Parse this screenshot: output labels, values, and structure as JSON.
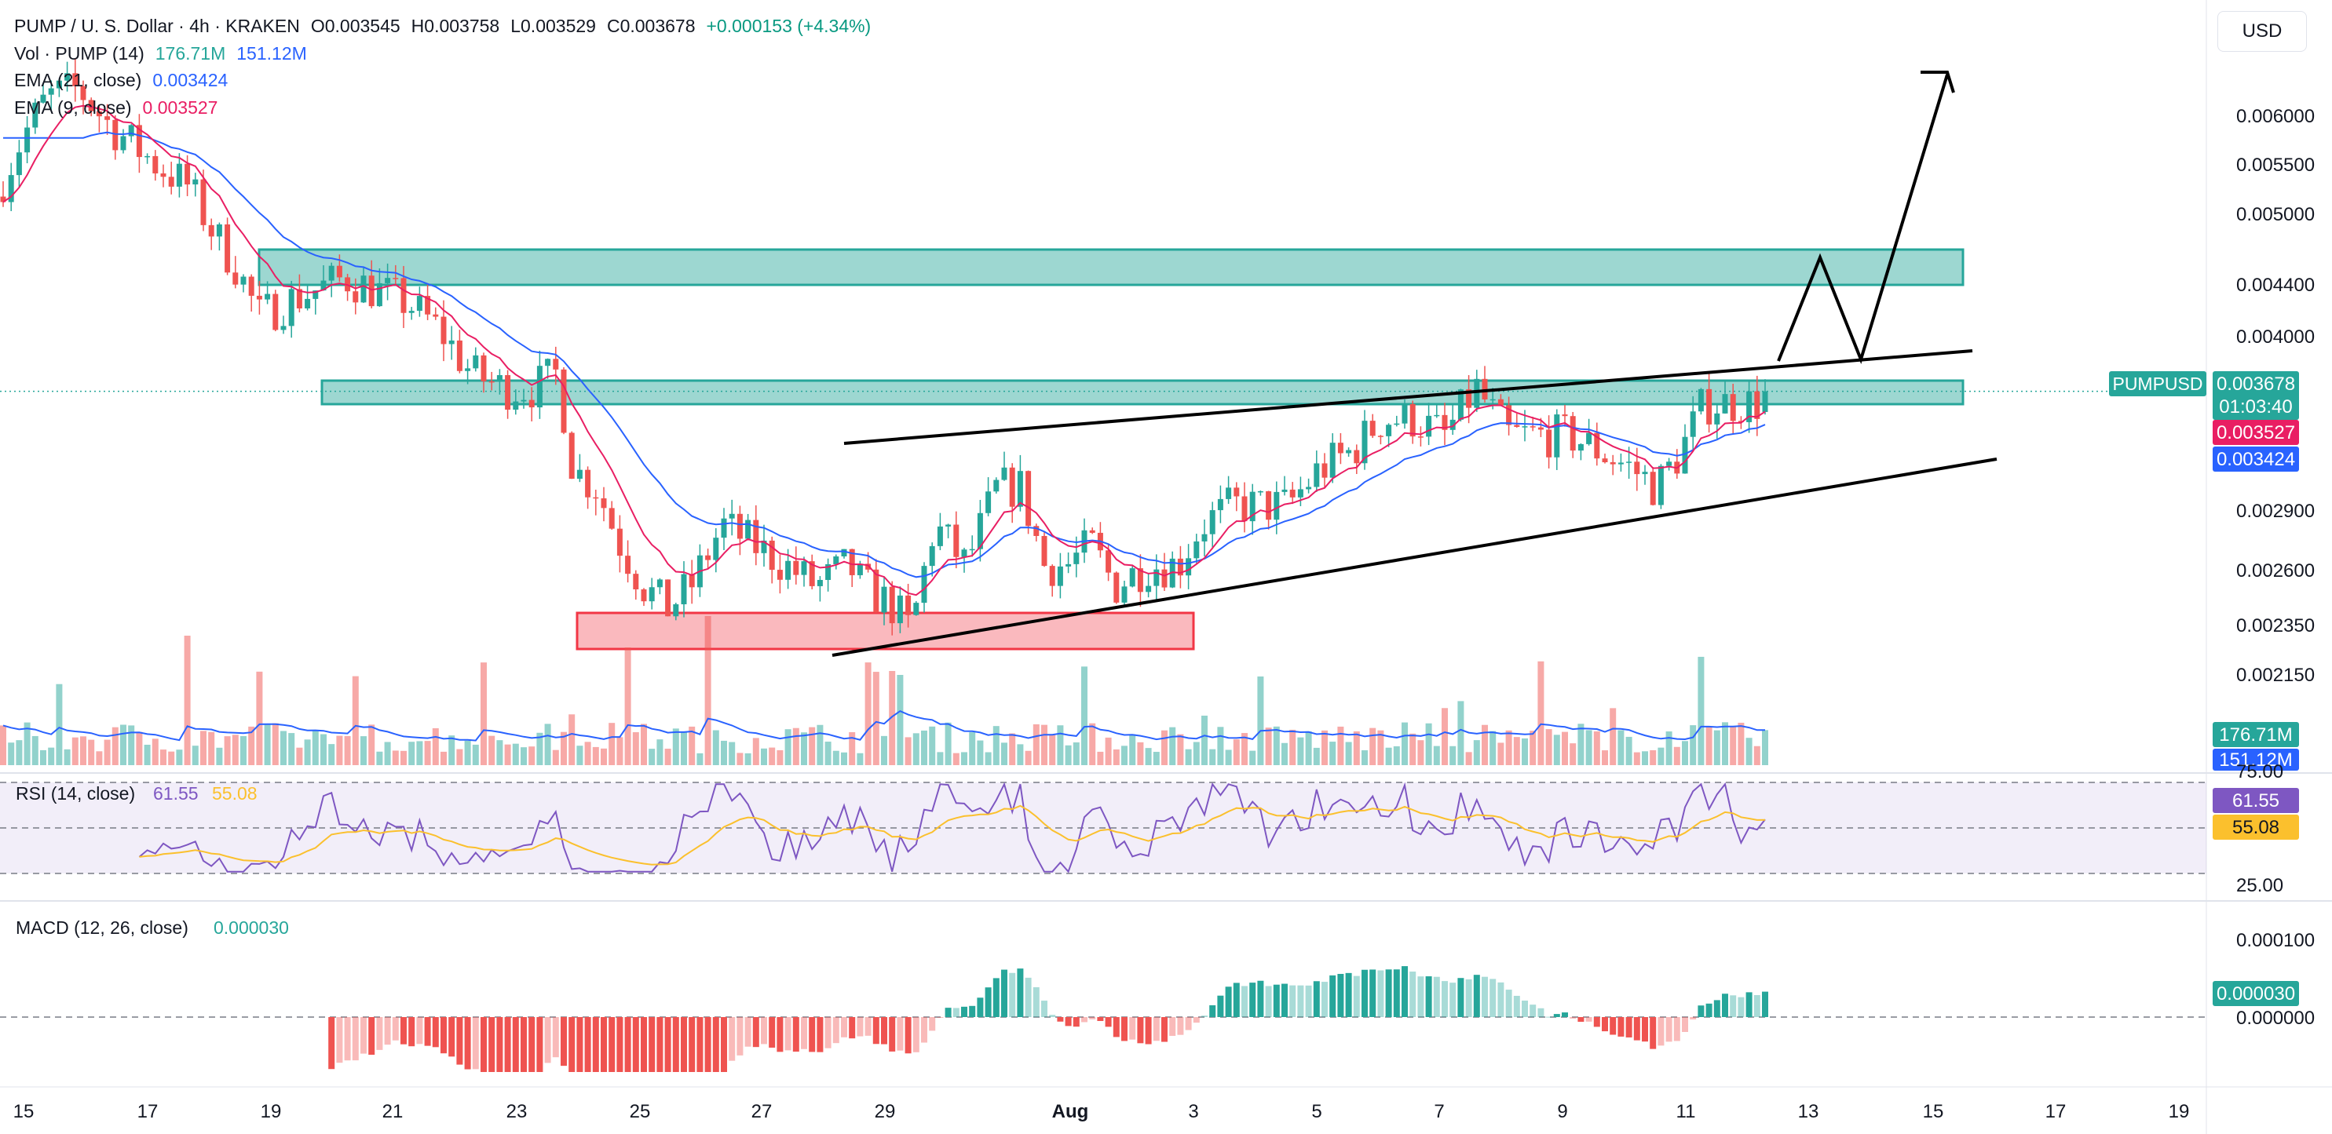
{
  "header": {
    "symbol": "PUMP / U. S. Dollar · 4h · KRAKEN",
    "open": "O0.003545",
    "high": "H0.003758",
    "low": "L0.003529",
    "close": "C0.003678",
    "change": "+0.000153 (+4.34%)",
    "vol_label": "Vol · PUMP (14)",
    "vol_value": "176.71M",
    "vol_ma": "151.12M",
    "ema21_label": "EMA (21, close)",
    "ema21_value": "0.003424",
    "ema9_label": "EMA (9, close)",
    "ema9_value": "0.003527",
    "currency_button": "USD"
  },
  "colors": {
    "up": "#26a69a",
    "down": "#ef5350",
    "ema9": "#e91e63",
    "ema21": "#2962ff",
    "zone": "#26a69a",
    "demand": "#f23645",
    "rsi": "#7e57c2",
    "rsi_ma": "#fbc02d"
  },
  "chart_data": [
    {
      "type": "candlestick",
      "title": "PUMP / U. S. Dollar · 4h · KRAKEN",
      "symbol_label": "PUMPUSD",
      "countdown": "01:03:40",
      "last_price": "0.003678",
      "ema9_last": "0.003527",
      "ema21_last": "0.003424",
      "price_ticks": [
        "0.006000",
        "0.005500",
        "0.005000",
        "0.004400",
        "0.004000",
        "0.002900",
        "0.002600",
        "0.002350",
        "0.002150"
      ],
      "x_ticks": [
        "15",
        "17",
        "19",
        "21",
        "23",
        "25",
        "27",
        "29",
        "Aug",
        "3",
        "5",
        "7",
        "9",
        "11",
        "13",
        "15",
        "17",
        "19"
      ],
      "ylim": [
        0.0019,
        0.0066
      ],
      "log_scale": true,
      "candles_ohlc_keypoints": [
        [
          "Jul 15",
          0.0052,
          0.0058,
          0.00505,
          0.00565
        ],
        [
          "Jul 16",
          0.0059,
          0.0066,
          0.0057,
          0.0061
        ],
        [
          "Jul 17",
          0.0056,
          0.0059,
          0.005,
          0.0052
        ],
        [
          "Jul 18",
          0.0046,
          0.0048,
          0.0038,
          0.00395
        ],
        [
          "Jul 19",
          0.0043,
          0.0046,
          0.004,
          0.0044
        ],
        [
          "Jul 20",
          0.00445,
          0.00465,
          0.0042,
          0.0043
        ],
        [
          "Jul 21",
          0.0043,
          0.00445,
          0.00415,
          0.00425
        ],
        [
          "Jul 22",
          0.004,
          0.0042,
          0.00355,
          0.00365
        ],
        [
          "Jul 23",
          0.00365,
          0.00385,
          0.0035,
          0.0037
        ],
        [
          "Jul 24",
          0.0032,
          0.0038,
          0.003,
          0.0031
        ],
        [
          "Jul 25",
          0.0026,
          0.00285,
          0.00245,
          0.00255
        ],
        [
          "Jul 26",
          0.0029,
          0.00305,
          0.0027,
          0.0028
        ],
        [
          "Jul 27",
          0.00275,
          0.0029,
          0.00262,
          0.0027
        ],
        [
          "Jul 28",
          0.00285,
          0.00295,
          0.00262,
          0.00272
        ],
        [
          "Jul 29",
          0.0025,
          0.00265,
          0.00232,
          0.00245
        ],
        [
          "Jul 30",
          0.0028,
          0.003,
          0.00255,
          0.00265
        ],
        [
          "Jul 31",
          0.0031,
          0.0032,
          0.00285,
          0.00295
        ],
        [
          "Aug 1",
          0.0028,
          0.0035,
          0.00255,
          0.0027
        ],
        [
          "Aug 2",
          0.0027,
          0.0029,
          0.00255,
          0.0028
        ],
        [
          "Aug 3",
          0.003,
          0.00315,
          0.00285,
          0.00305
        ],
        [
          "Aug 4",
          0.0031,
          0.0032,
          0.00295,
          0.003
        ],
        [
          "Aug 5",
          0.0033,
          0.0035,
          0.0031,
          0.0034
        ],
        [
          "Aug 6",
          0.0035,
          0.00365,
          0.00335,
          0.00345
        ],
        [
          "Aug 7",
          0.00345,
          0.0037,
          0.0033,
          0.0034
        ],
        [
          "Aug 8",
          0.00345,
          0.00355,
          0.00335,
          0.0034
        ],
        [
          "Aug 9",
          0.0033,
          0.00345,
          0.0031,
          0.0032
        ],
        [
          "Aug 10",
          0.0031,
          0.00325,
          0.00305,
          0.00315
        ],
        [
          "Aug 11",
          0.0036,
          0.00385,
          0.0034,
          0.0037
        ],
        [
          "Aug 12",
          0.00355,
          0.00376,
          0.00353,
          0.00368
        ]
      ]
    },
    {
      "type": "bar",
      "title": "Vol · PUMP (14)",
      "series": [
        {
          "name": "Vol · PUMP (14)",
          "last": "176.71M"
        },
        {
          "name": "MA",
          "last": "151.12M"
        }
      ]
    },
    {
      "type": "line",
      "title": "RSI (14, close)",
      "ylim": [
        25,
        75
      ],
      "y_ticks": [
        "75.00",
        "25.00"
      ],
      "series": [
        {
          "name": "RSI (14, close)",
          "last": "61.55"
        },
        {
          "name": "RSI MA",
          "last": "55.08"
        }
      ]
    },
    {
      "type": "bar",
      "title": "MACD (12, 26, close)",
      "value": "0.000030",
      "y_ticks": [
        "0.000100",
        "0.000000"
      ]
    }
  ]
}
